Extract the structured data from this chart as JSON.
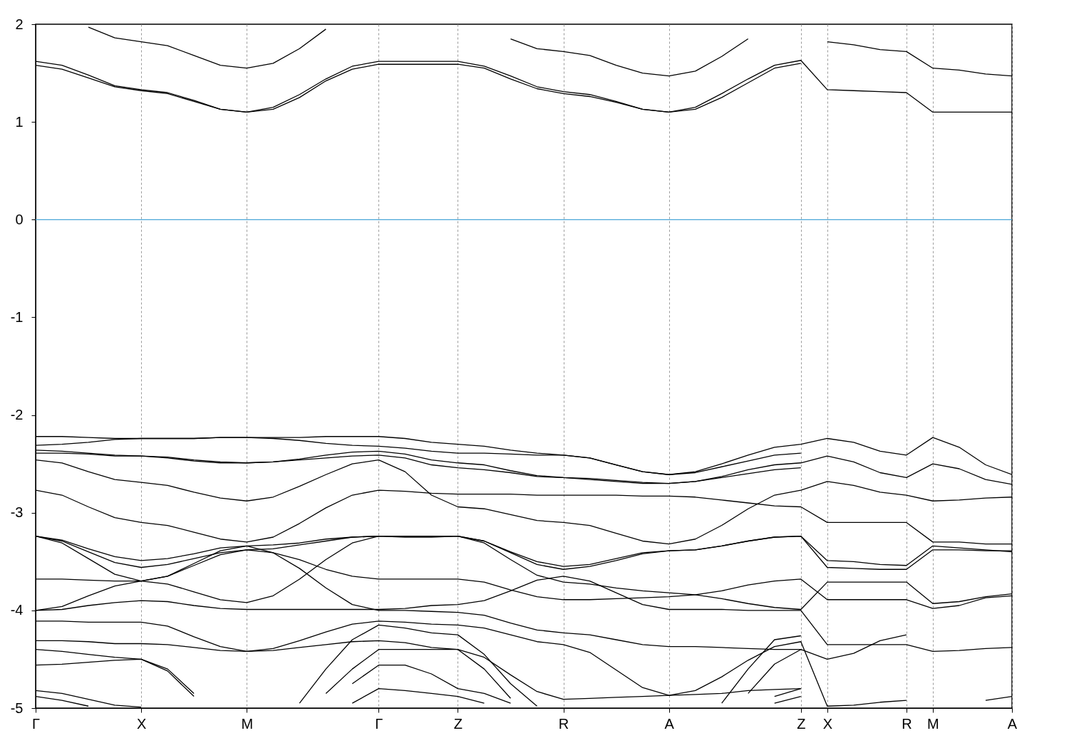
{
  "chart_data": {
    "type": "line",
    "categories": [
      "Γ",
      null,
      null,
      null,
      "X",
      null,
      null,
      null,
      "M",
      null,
      null,
      null,
      null,
      "Γ",
      null,
      null,
      "Z",
      null,
      null,
      null,
      "R",
      null,
      null,
      null,
      "A",
      null,
      null,
      null,
      null,
      "Z",
      "X",
      null,
      null,
      "R",
      "M",
      null,
      null,
      "A"
    ],
    "ylim": [
      -5,
      2
    ],
    "yticks": [
      -5,
      -4,
      -3,
      -2,
      -1,
      0,
      1,
      2
    ],
    "grid": "x",
    "ref_lines": [
      {
        "axis": "y",
        "value": 0,
        "color": "#4aa6d8"
      }
    ],
    "series": [
      {
        "color": "#000000",
        "values": [
          null,
          null,
          1.97,
          1.86,
          1.82,
          1.78,
          1.68,
          1.58,
          1.55,
          1.6,
          1.75,
          1.95,
          null,
          null,
          null,
          null,
          null,
          null,
          1.85,
          1.75,
          1.72,
          1.68,
          1.58,
          1.5,
          1.47,
          1.52,
          1.67,
          1.85,
          null,
          null,
          1.82,
          1.79,
          1.74,
          1.72,
          1.55,
          1.53,
          1.49,
          1.47
        ]
      },
      {
        "color": "#000000",
        "values": [
          1.62,
          1.58,
          1.48,
          1.37,
          1.33,
          1.3,
          1.22,
          1.13,
          1.1,
          1.15,
          1.28,
          1.44,
          1.57,
          1.62,
          1.62,
          1.62,
          1.62,
          1.57,
          1.47,
          1.36,
          1.31,
          1.28,
          1.21,
          1.13,
          1.1,
          1.15,
          1.29,
          1.44,
          1.58,
          1.63,
          1.33,
          1.32,
          1.31,
          1.3,
          1.1,
          1.1,
          1.1,
          1.1
        ]
      },
      {
        "color": "#000000",
        "values": [
          1.58,
          1.54,
          1.45,
          1.36,
          1.32,
          1.29,
          1.21,
          1.13,
          1.1,
          1.13,
          1.25,
          1.42,
          1.54,
          1.59,
          1.59,
          1.59,
          1.59,
          1.55,
          1.44,
          1.34,
          1.29,
          1.26,
          1.2,
          1.13,
          1.1,
          1.13,
          1.25,
          1.4,
          1.55,
          1.6,
          null,
          null,
          null,
          null,
          null,
          null,
          null,
          null
        ]
      },
      {
        "color": "#000000",
        "values": [
          -2.22,
          -2.22,
          -2.23,
          -2.24,
          -2.24,
          -2.24,
          -2.24,
          -2.23,
          -2.23,
          -2.23,
          -2.23,
          -2.22,
          -2.22,
          -2.22,
          -2.24,
          -2.28,
          -2.3,
          -2.32,
          -2.36,
          -2.39,
          -2.41,
          -2.44,
          -2.51,
          -2.58,
          -2.61,
          -2.58,
          -2.5,
          -2.41,
          -2.33,
          -2.3,
          -2.24,
          -2.28,
          -2.37,
          -2.41,
          -2.23,
          -2.33,
          -2.51,
          -2.61
        ]
      },
      {
        "color": "#000000",
        "values": [
          -2.31,
          -2.3,
          -2.28,
          -2.25,
          -2.24,
          -2.24,
          -2.24,
          -2.23,
          -2.23,
          -2.24,
          -2.26,
          -2.29,
          -2.31,
          -2.32,
          -2.34,
          -2.37,
          -2.39,
          -2.39,
          -2.4,
          -2.41,
          -2.41,
          -2.44,
          -2.51,
          -2.58,
          -2.61,
          -2.59,
          -2.53,
          -2.47,
          -2.41,
          -2.39,
          null,
          null,
          null,
          null,
          null,
          null,
          null,
          null
        ]
      },
      {
        "color": "#000000",
        "values": [
          -2.36,
          -2.37,
          -2.39,
          -2.41,
          -2.42,
          -2.43,
          -2.46,
          -2.48,
          -2.49,
          -2.48,
          -2.45,
          -2.41,
          -2.38,
          -2.37,
          -2.4,
          -2.46,
          -2.49,
          -2.51,
          -2.57,
          -2.62,
          -2.64,
          -2.65,
          -2.67,
          -2.69,
          -2.7,
          -2.68,
          -2.63,
          -2.56,
          -2.51,
          -2.49,
          -2.42,
          -2.48,
          -2.59,
          -2.64,
          -2.5,
          -2.55,
          -2.66,
          -2.71
        ]
      },
      {
        "color": "#000000",
        "values": [
          -2.39,
          -2.39,
          -2.4,
          -2.42,
          -2.42,
          -2.44,
          -2.47,
          -2.49,
          -2.49,
          -2.48,
          -2.46,
          -2.44,
          -2.42,
          -2.41,
          -2.44,
          -2.51,
          -2.54,
          -2.56,
          -2.59,
          -2.63,
          -2.64,
          -2.66,
          -2.68,
          -2.7,
          -2.7,
          -2.68,
          -2.64,
          -2.6,
          -2.56,
          -2.54,
          null,
          null,
          null,
          null,
          null,
          null,
          null,
          null
        ]
      },
      {
        "color": "#000000",
        "values": [
          -2.46,
          -2.49,
          -2.58,
          -2.66,
          -2.69,
          -2.72,
          -2.79,
          -2.85,
          -2.88,
          -2.84,
          -2.73,
          -2.61,
          -2.5,
          -2.46,
          -2.58,
          -2.82,
          -2.94,
          -2.96,
          -3.02,
          -3.08,
          -3.1,
          -3.13,
          -3.21,
          -3.29,
          -3.32,
          -3.27,
          -3.13,
          -2.96,
          -2.82,
          -2.77,
          -2.68,
          -2.72,
          -2.79,
          -2.82,
          -2.88,
          -2.87,
          -2.85,
          -2.84
        ]
      },
      {
        "color": "#000000",
        "values": [
          -2.77,
          -2.82,
          -2.94,
          -3.05,
          -3.1,
          -3.13,
          -3.2,
          -3.27,
          -3.3,
          -3.25,
          -3.11,
          -2.95,
          -2.82,
          -2.77,
          -2.78,
          -2.8,
          -2.81,
          -2.81,
          -2.81,
          -2.82,
          -2.82,
          -2.82,
          -2.82,
          -2.83,
          -2.83,
          -2.84,
          -2.87,
          -2.9,
          -2.93,
          -2.94,
          -3.1,
          -3.1,
          -3.1,
          -3.1,
          -3.3,
          -3.3,
          -3.32,
          -3.32
        ]
      },
      {
        "color": "#000000",
        "values": [
          -3.24,
          -3.28,
          -3.37,
          -3.45,
          -3.49,
          -3.47,
          -3.42,
          -3.36,
          -3.34,
          -3.33,
          -3.31,
          -3.27,
          -3.25,
          -3.24,
          -3.24,
          -3.24,
          -3.24,
          -3.29,
          -3.4,
          -3.5,
          -3.55,
          -3.53,
          -3.47,
          -3.41,
          -3.39,
          -3.38,
          -3.34,
          -3.29,
          -3.25,
          -3.24,
          -3.49,
          -3.5,
          -3.53,
          -3.54,
          -3.34,
          -3.36,
          -3.38,
          -3.4
        ]
      },
      {
        "color": "#000000",
        "values": [
          -3.24,
          -3.29,
          -3.4,
          -3.51,
          -3.56,
          -3.53,
          -3.47,
          -3.41,
          -3.38,
          -3.37,
          -3.33,
          -3.29,
          -3.25,
          -3.24,
          -3.25,
          -3.25,
          -3.24,
          -3.29,
          -3.41,
          -3.53,
          -3.58,
          -3.55,
          -3.49,
          -3.42,
          -3.39,
          -3.38,
          -3.34,
          -3.29,
          -3.25,
          -3.24,
          -3.56,
          -3.57,
          -3.58,
          -3.58,
          -3.38,
          -3.38,
          -3.39,
          -3.39
        ]
      },
      {
        "color": "#000000",
        "values": [
          -3.24,
          -3.31,
          -3.47,
          -3.63,
          -3.7,
          -3.73,
          -3.81,
          -3.89,
          -3.92,
          -3.85,
          -3.68,
          -3.48,
          -3.31,
          -3.24,
          -3.24,
          -3.24,
          -3.24,
          -3.31,
          -3.48,
          -3.64,
          -3.71,
          -3.73,
          -3.77,
          -3.8,
          -3.82,
          -3.84,
          -3.88,
          -3.93,
          -3.97,
          -3.99,
          -3.71,
          -3.71,
          -3.71,
          -3.71,
          -3.93,
          -3.91,
          -3.86,
          -3.83
        ]
      },
      {
        "color": "#000000",
        "values": [
          -3.68,
          -3.68,
          -3.69,
          -3.7,
          -3.7,
          -3.65,
          -3.54,
          -3.43,
          -3.38,
          -3.41,
          -3.48,
          -3.58,
          -3.65,
          -3.68,
          -3.68,
          -3.68,
          -3.68,
          -3.71,
          -3.79,
          -3.86,
          -3.89,
          -3.89,
          -3.88,
          -3.87,
          -3.86,
          -3.84,
          -3.8,
          -3.74,
          -3.7,
          -3.68,
          -3.89,
          -3.89,
          -3.89,
          -3.89,
          -3.98,
          -3.95,
          -3.87,
          -3.85
        ]
      },
      {
        "color": "#000000",
        "values": [
          -4.0,
          -3.99,
          -3.95,
          -3.92,
          -3.9,
          -3.91,
          -3.95,
          -3.98,
          -3.99,
          -3.99,
          -3.99,
          -3.99,
          -3.99,
          -3.99,
          -3.98,
          -3.95,
          -3.94,
          -3.9,
          -3.8,
          -3.69,
          -3.65,
          -3.7,
          -3.82,
          -3.94,
          -3.99,
          -3.99,
          -3.99,
          -4.0,
          -4.0,
          -4.0,
          -4.35,
          -4.35,
          -4.35,
          -4.35,
          -4.42,
          -4.41,
          -4.39,
          -4.38
        ]
      },
      {
        "color": "#000000",
        "values": [
          -4.0,
          -3.96,
          -3.85,
          -3.75,
          -3.7,
          -3.65,
          -3.52,
          -3.39,
          -3.34,
          -3.41,
          -3.57,
          -3.77,
          -3.94,
          -4.0,
          -4.0,
          -4.01,
          -4.02,
          -4.05,
          -4.13,
          -4.2,
          -4.23,
          -4.25,
          -4.3,
          -4.35,
          -4.37,
          -4.37,
          -4.38,
          -4.39,
          -4.4,
          -4.4,
          -4.5,
          -4.44,
          -4.31,
          -4.25,
          null,
          null,
          null,
          null
        ]
      },
      {
        "color": "#000000",
        "values": [
          -4.11,
          -4.11,
          -4.12,
          -4.12,
          -4.12,
          -4.16,
          -4.27,
          -4.37,
          -4.42,
          -4.39,
          -4.31,
          -4.22,
          -4.14,
          -4.11,
          -4.12,
          -4.14,
          -4.15,
          -4.18,
          -4.25,
          -4.32,
          -4.35,
          -4.43,
          -4.61,
          -4.79,
          -4.87,
          -4.82,
          -4.68,
          -4.51,
          -4.37,
          -4.32,
          -4.98,
          -4.97,
          -4.94,
          -4.92,
          null,
          null,
          -4.92,
          -4.88
        ]
      },
      {
        "color": "#000000",
        "values": [
          -4.31,
          -4.31,
          -4.32,
          -4.34,
          -4.34,
          -4.35,
          -4.38,
          -4.41,
          -4.42,
          -4.41,
          -4.38,
          -4.35,
          -4.32,
          -4.31,
          -4.33,
          -4.38,
          -4.4,
          -4.48,
          -4.66,
          -4.83,
          -4.91,
          -4.9,
          -4.89,
          -4.88,
          -4.87,
          -4.86,
          -4.85,
          -4.82,
          -4.81,
          -4.8,
          null,
          null,
          null,
          null,
          null,
          null,
          null,
          null
        ]
      },
      {
        "color": "#000000",
        "values": [
          -4.4,
          -4.42,
          -4.45,
          -4.48,
          -4.5,
          -4.6,
          -4.85,
          null,
          null,
          null,
          -4.95,
          -4.6,
          -4.3,
          -4.15,
          -4.18,
          -4.23,
          -4.25,
          -4.45,
          -4.75,
          -4.98,
          null,
          null,
          null,
          null,
          null,
          null,
          -4.95,
          -4.6,
          -4.3,
          -4.26,
          null,
          null,
          null,
          null,
          null,
          null,
          null,
          null
        ]
      },
      {
        "color": "#000000",
        "values": [
          -4.56,
          -4.55,
          -4.53,
          -4.51,
          -4.5,
          -4.62,
          -4.88,
          null,
          null,
          null,
          null,
          -4.85,
          -4.6,
          -4.4,
          -4.4,
          -4.4,
          -4.4,
          -4.6,
          -4.9,
          null,
          null,
          null,
          null,
          null,
          null,
          null,
          null,
          -4.85,
          -4.55,
          -4.4,
          null,
          null,
          null,
          null,
          null,
          null,
          null,
          null
        ]
      },
      {
        "color": "#000000",
        "values": [
          -4.82,
          -4.85,
          -4.91,
          -4.97,
          -4.99,
          null,
          null,
          null,
          null,
          null,
          null,
          null,
          -4.75,
          -4.56,
          -4.56,
          -4.65,
          -4.8,
          -4.85,
          -4.95,
          null,
          null,
          null,
          null,
          null,
          null,
          null,
          null,
          null,
          -4.88,
          -4.8,
          null,
          null,
          null,
          null,
          null,
          null,
          null,
          null
        ]
      },
      {
        "color": "#000000",
        "values": [
          -4.88,
          -4.92,
          -4.98,
          null,
          null,
          null,
          null,
          null,
          null,
          null,
          null,
          null,
          -4.95,
          -4.8,
          -4.82,
          -4.85,
          -4.88,
          -4.95,
          null,
          null,
          null,
          null,
          null,
          null,
          null,
          null,
          null,
          null,
          -4.95,
          -4.88,
          null,
          null,
          null,
          null,
          null,
          null,
          null,
          null
        ]
      }
    ]
  }
}
